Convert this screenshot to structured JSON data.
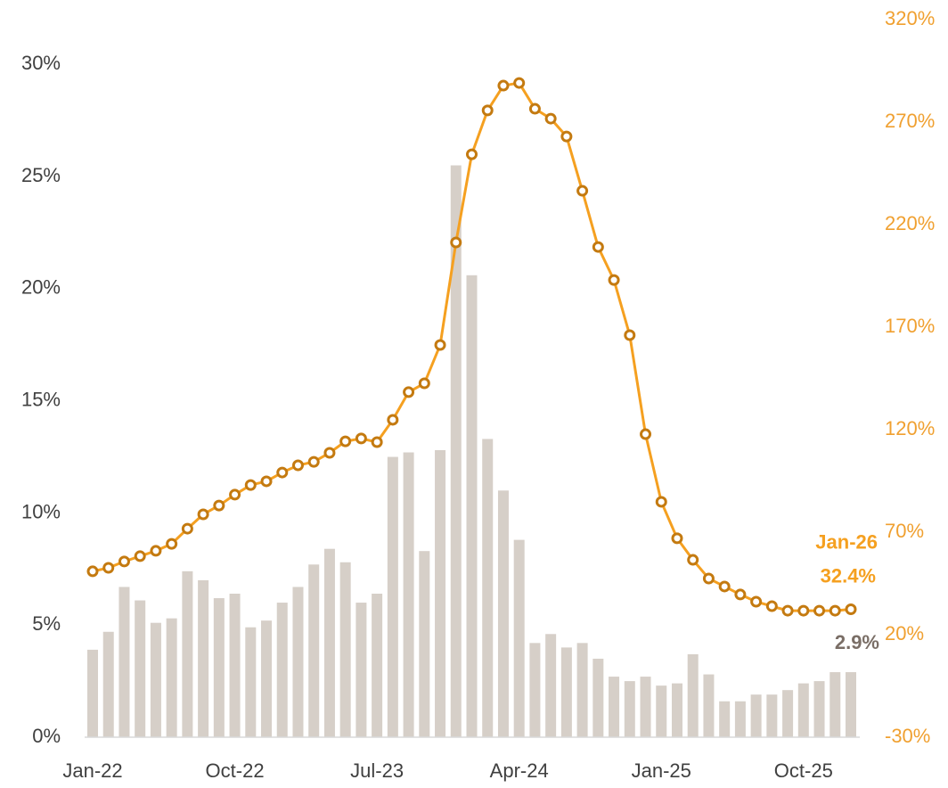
{
  "chart_data": {
    "type": "bar_line",
    "categories": [
      "Jan-22",
      null,
      null,
      null,
      null,
      null,
      null,
      null,
      null,
      "Oct-22",
      null,
      null,
      null,
      null,
      null,
      null,
      null,
      null,
      "Jul-23",
      null,
      null,
      null,
      null,
      null,
      null,
      null,
      null,
      "Apr-24",
      null,
      null,
      null,
      null,
      null,
      null,
      null,
      null,
      "Jan-25",
      null,
      null,
      null,
      null,
      null,
      null,
      null,
      null,
      "Oct-25",
      null,
      null,
      null
    ],
    "series": [
      {
        "type": "bar",
        "color": "#d6cfc8",
        "value_label_color": "#7a6e66",
        "values": [
          3.9,
          4.7,
          6.7,
          6.1,
          5.1,
          5.3,
          7.4,
          7.0,
          6.2,
          6.4,
          4.9,
          5.2,
          6.0,
          6.7,
          7.7,
          8.4,
          7.8,
          6.0,
          6.4,
          12.5,
          12.7,
          8.3,
          12.8,
          25.5,
          20.6,
          13.3,
          11.0,
          8.8,
          4.2,
          4.6,
          4.0,
          4.2,
          3.5,
          2.7,
          2.5,
          2.7,
          2.3,
          2.4,
          3.7,
          2.8,
          1.6,
          1.6,
          1.9,
          1.9,
          2.1,
          2.4,
          2.5,
          2.9,
          2.9
        ],
        "value_labels": [
          null,
          null,
          null,
          null,
          null,
          null,
          null,
          null,
          null,
          null,
          null,
          null,
          null,
          null,
          null,
          null,
          null,
          null,
          null,
          null,
          null,
          null,
          null,
          null,
          null,
          null,
          null,
          null,
          null,
          null,
          null,
          null,
          null,
          null,
          null,
          null,
          null,
          null,
          null,
          null,
          null,
          null,
          null,
          null,
          null,
          null,
          null,
          null,
          "2.9%"
        ]
      },
      {
        "type": "line",
        "axis": "y2",
        "color": "#f5a020",
        "marker_color": "#c47a10",
        "values": [
          50.9,
          52.6,
          55.7,
          58.3,
          60.9,
          64.3,
          71.7,
          78.7,
          83.0,
          88.3,
          93.0,
          94.8,
          99.1,
          102.6,
          104.3,
          108.7,
          114.3,
          115.7,
          113.9,
          124.8,
          138.3,
          142.6,
          161.3,
          211.3,
          254.3,
          275.7,
          287.8,
          289.1,
          276.5,
          271.7,
          263.0,
          236.5,
          209.1,
          193.0,
          166.1,
          117.8,
          84.8,
          67.0,
          56.5,
          47.4,
          43.5,
          39.6,
          36.1,
          33.9,
          31.7,
          31.7,
          31.7,
          31.7,
          32.4
        ],
        "value_labels": [
          null,
          null,
          null,
          null,
          null,
          null,
          null,
          null,
          null,
          null,
          null,
          null,
          null,
          null,
          null,
          null,
          null,
          null,
          null,
          null,
          null,
          null,
          null,
          null,
          null,
          null,
          null,
          null,
          null,
          null,
          null,
          null,
          null,
          null,
          null,
          null,
          null,
          null,
          null,
          null,
          null,
          null,
          null,
          null,
          null,
          null,
          null,
          null,
          "32.4%"
        ]
      }
    ],
    "annotations": [
      "Jan-26"
    ],
    "ylim": [
      0,
      32
    ],
    "yticks": [
      {
        "value": 0,
        "label": "0%"
      },
      {
        "value": 5,
        "label": "5%"
      },
      {
        "value": 10,
        "label": "10%"
      },
      {
        "value": 15,
        "label": "15%"
      },
      {
        "value": 20,
        "label": "20%"
      },
      {
        "value": 25,
        "label": "25%"
      },
      {
        "value": 30,
        "label": "30%"
      }
    ],
    "y2lim": [
      -30,
      320
    ],
    "y2ticks": [
      {
        "value": -30,
        "label": "-30%"
      },
      {
        "value": 20,
        "label": "20%"
      },
      {
        "value": 70,
        "label": "70%"
      },
      {
        "value": 120,
        "label": "120%"
      },
      {
        "value": 170,
        "label": "170%"
      },
      {
        "value": 220,
        "label": "220%"
      },
      {
        "value": 270,
        "label": "270%"
      },
      {
        "value": 320,
        "label": "320%"
      }
    ],
    "y2tick_color": "#f0a030",
    "ytick_color": "#404040",
    "grid": false
  }
}
